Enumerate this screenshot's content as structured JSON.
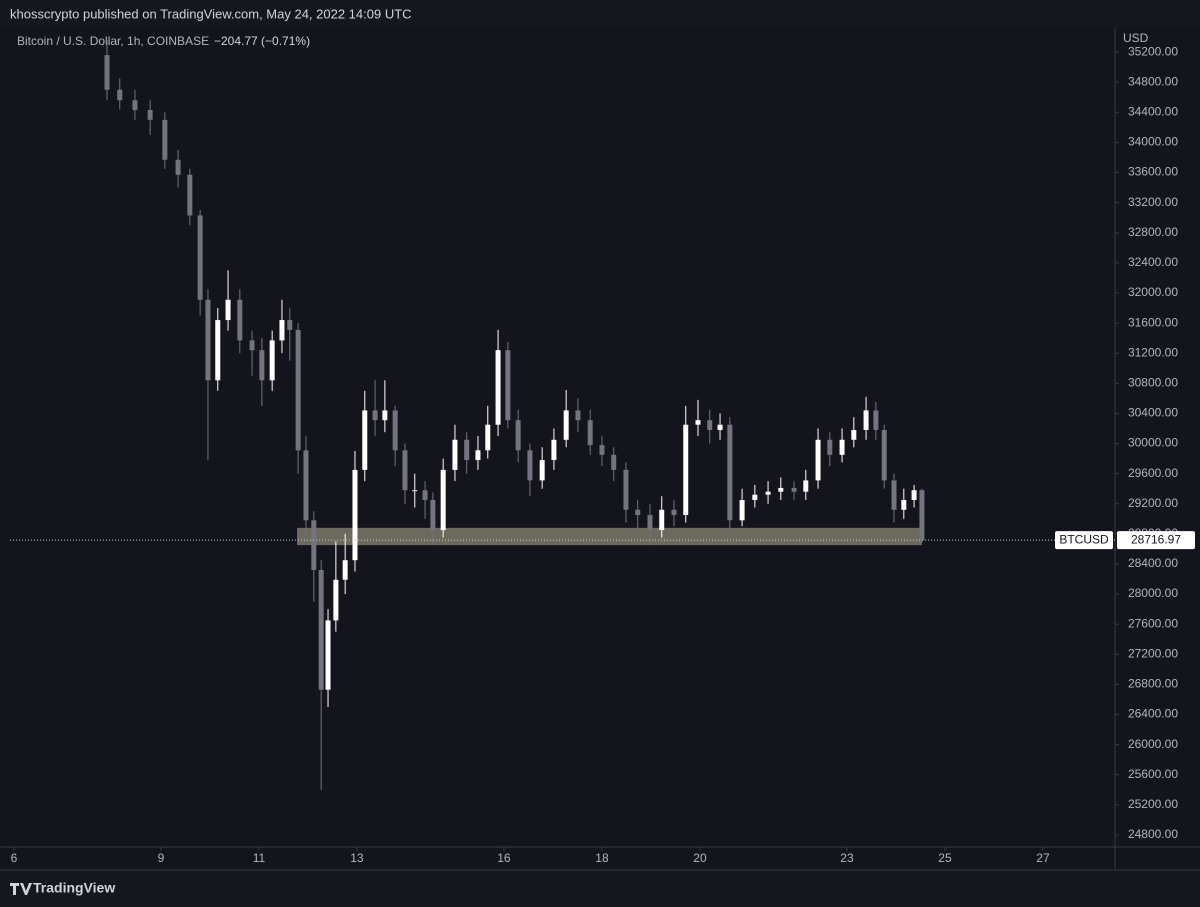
{
  "header": "khosscrypto published on TradingView.com, May 24, 2022 14:09 UTC",
  "footer": "TradingView",
  "chart_data": {
    "type": "candlestick",
    "title": "Bitcoin / U.S. Dollar, 1h, COINBASE",
    "change": "−204.77 (−0.71%)",
    "y_axis_label": "USD",
    "symbol": "BTCUSD",
    "up_color": "#ffffff",
    "down_color": "#74747e",
    "band_color": "#8a8573",
    "highlight_band": [
      28650,
      28880
    ],
    "x": [
      7.9,
      8.16,
      8.47,
      8.78,
      9.08,
      9.35,
      9.59,
      9.8,
      9.96,
      10.16,
      10.37,
      10.61,
      10.86,
      11.06,
      11.27,
      11.47,
      11.63,
      11.8,
      11.96,
      12.12,
      12.27,
      12.41,
      12.57,
      12.76,
      12.96,
      13.16,
      13.37,
      13.57,
      13.78,
      13.98,
      14.18,
      14.39,
      14.55,
      14.76,
      15,
      15.24,
      15.47,
      15.67,
      15.88,
      16.08,
      16.29,
      16.53,
      16.78,
      17.02,
      17.27,
      17.51,
      17.76,
      18,
      18.24,
      18.49,
      18.73,
      18.98,
      19.22,
      19.47,
      19.71,
      19.96,
      20.2,
      20.41,
      20.61,
      20.86,
      21.12,
      21.39,
      21.65,
      21.92,
      22.16,
      22.41,
      22.65,
      22.9,
      23.14,
      23.39,
      23.59,
      23.76,
      23.96,
      24.16,
      24.37,
      24.53
    ],
    "open": [
      35160,
      34700,
      34560,
      34430,
      34300,
      33770,
      33570,
      33030,
      31910,
      30840,
      31640,
      31910,
      31370,
      31240,
      30840,
      31370,
      31640,
      31510,
      29910,
      28980,
      28320,
      26730,
      27650,
      28190,
      28450,
      29650,
      30440,
      30310,
      30440,
      29910,
      29380,
      29380,
      29250,
      28850,
      29650,
      30050,
      29780,
      29910,
      30250,
      31240,
      30310,
      29910,
      29510,
      29780,
      30050,
      30440,
      30310,
      29980,
      29850,
      29650,
      29120,
      29050,
      28850,
      29120,
      29050,
      30250,
      30310,
      30180,
      30250,
      28980,
      29250,
      29320,
      29360,
      29410,
      29360,
      29510,
      30050,
      29850,
      30050,
      30180,
      30440,
      30180,
      29510,
      29120,
      29250,
      29380
    ],
    "high": [
      35360,
      34850,
      34700,
      34560,
      34400,
      33900,
      33650,
      33100,
      32050,
      31800,
      32300,
      32050,
      31500,
      31400,
      31500,
      31910,
      31800,
      31600,
      30100,
      29100,
      28450,
      27800,
      28700,
      28800,
      29900,
      30700,
      30840,
      30840,
      30500,
      30000,
      29600,
      29500,
      29350,
      29800,
      30250,
      30150,
      30100,
      30500,
      31510,
      31350,
      30450,
      30000,
      29950,
      30200,
      30710,
      30600,
      30450,
      30100,
      29950,
      29750,
      29250,
      29200,
      29300,
      29250,
      30500,
      30580,
      30450,
      30400,
      30350,
      29400,
      29450,
      29500,
      29550,
      29500,
      29650,
      30200,
      30150,
      30200,
      30350,
      30620,
      30550,
      30250,
      29600,
      29400,
      29450,
      29400
    ],
    "low": [
      34560,
      34440,
      34300,
      34100,
      33650,
      33400,
      32900,
      31700,
      29780,
      30700,
      31500,
      31200,
      30900,
      30500,
      30700,
      31200,
      31100,
      29600,
      28700,
      27900,
      25400,
      26500,
      27500,
      28000,
      28300,
      29500,
      30100,
      30150,
      29700,
      29200,
      29150,
      29000,
      28650,
      28750,
      29500,
      29600,
      29650,
      29800,
      30100,
      30200,
      29750,
      29300,
      29400,
      29650,
      29950,
      30150,
      29850,
      29700,
      29500,
      28950,
      28850,
      28650,
      28750,
      28900,
      28950,
      30100,
      30000,
      30050,
      28850,
      28900,
      29150,
      29200,
      29250,
      29250,
      29250,
      29400,
      29700,
      29750,
      29950,
      30050,
      30050,
      29400,
      28950,
      29000,
      29150,
      28680
    ],
    "close": [
      34700,
      34560,
      34430,
      34300,
      33770,
      33570,
      33030,
      31910,
      30840,
      31640,
      31910,
      31370,
      31240,
      30840,
      31370,
      31640,
      31510,
      29910,
      28980,
      28320,
      26730,
      27650,
      28190,
      28450,
      29650,
      30440,
      30310,
      30440,
      29910,
      29380,
      29380,
      29250,
      28850,
      29650,
      30050,
      29780,
      29910,
      30250,
      31240,
      30310,
      29910,
      29510,
      29780,
      30050,
      30440,
      30310,
      29980,
      29850,
      29650,
      29120,
      29050,
      28850,
      29120,
      29050,
      30250,
      30310,
      30180,
      30250,
      28980,
      29250,
      29320,
      29360,
      29410,
      29360,
      29510,
      30050,
      29850,
      30050,
      30180,
      30440,
      30180,
      29510,
      29120,
      29250,
      29380,
      28716.97
    ],
    "xlim": [
      5.92,
      28.47
    ],
    "xticks": [
      6,
      9,
      11,
      13,
      16,
      18,
      20,
      23,
      25,
      27
    ],
    "ylim": [
      24640,
      35520
    ],
    "yticks": [
      {
        "value": 24800,
        "label": "24800.00"
      },
      {
        "value": 25200,
        "label": "25200.00"
      },
      {
        "value": 25600,
        "label": "25600.00"
      },
      {
        "value": 26000,
        "label": "26000.00"
      },
      {
        "value": 26400,
        "label": "26400.00"
      },
      {
        "value": 26800,
        "label": "26800.00"
      },
      {
        "value": 27200,
        "label": "27200.00"
      },
      {
        "value": 27600,
        "label": "27600.00"
      },
      {
        "value": 28000,
        "label": "28000.00"
      },
      {
        "value": 28400,
        "label": "28400.00"
      },
      {
        "value": 28800,
        "label": "28800.00"
      },
      {
        "value": 29200,
        "label": "29200.00"
      },
      {
        "value": 29600,
        "label": "29600.00"
      },
      {
        "value": 30000,
        "label": "30000.00"
      },
      {
        "value": 30400,
        "label": "30400.00"
      },
      {
        "value": 30800,
        "label": "30800.00"
      },
      {
        "value": 31200,
        "label": "31200.00"
      },
      {
        "value": 31600,
        "label": "31600.00"
      },
      {
        "value": 32000,
        "label": "32000.00"
      },
      {
        "value": 32400,
        "label": "32400.00"
      },
      {
        "value": 32800,
        "label": "32800.00"
      },
      {
        "value": 33200,
        "label": "33200.00"
      },
      {
        "value": 33600,
        "label": "33600.00"
      },
      {
        "value": 34000,
        "label": "34000.00"
      },
      {
        "value": 34400,
        "label": "34400.00"
      },
      {
        "value": 34800,
        "label": "34800.00"
      },
      {
        "value": 35200,
        "label": "35200.00"
      }
    ]
  }
}
